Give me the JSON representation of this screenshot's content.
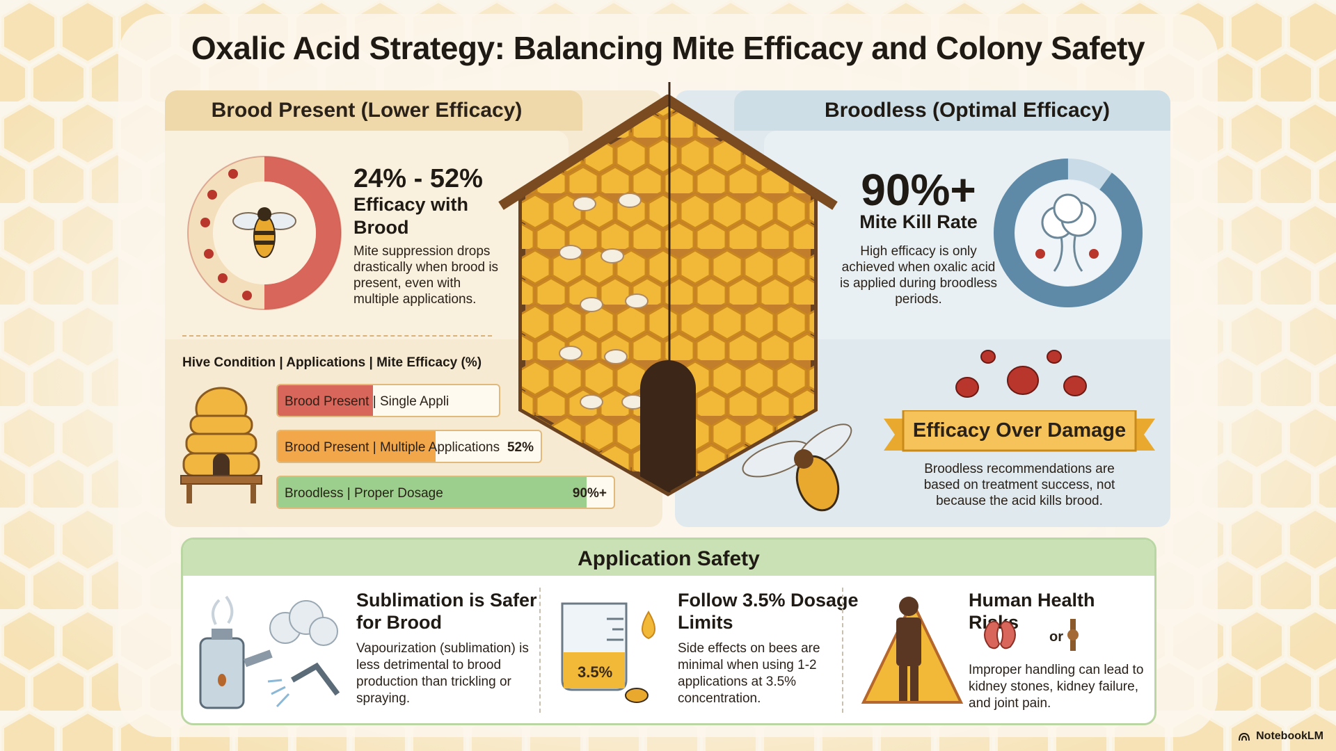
{
  "title": "Oxalic Acid Strategy: Balancing Mite Efficacy and Colony Safety",
  "left": {
    "tab_label": "Brood Present (Lower Efficacy)",
    "big_range": "24% - 52%",
    "big_sub": "Efficacy with Brood",
    "body": "Mite suppression drops drastically when brood is present, even with multiple applications.",
    "donut_fraction": 0.5,
    "table_header": "Hive Condition | Applications | Mite Efficacy (%)",
    "bars": [
      {
        "label": "Brood Present | Single Appli",
        "value": "",
        "fill_fraction": 0.43,
        "color": "#d9665a"
      },
      {
        "label": "Brood Present | Multiple Applications",
        "value": "52%",
        "fill_fraction": 0.6,
        "color": "#f2a84a"
      },
      {
        "label": "Broodless | Proper Dosage",
        "value": "90%+",
        "fill_fraction": 0.92,
        "color": "#9ccf8e"
      }
    ]
  },
  "right": {
    "tab_label": "Broodless (Optimal Efficacy)",
    "big_value": "90%+",
    "big_sub": "Mite Kill Rate",
    "body": "High efficacy is only achieved when oxalic acid is applied during broodless periods.",
    "donut_fraction": 0.9,
    "ribbon_label": "Efficacy Over Damage",
    "ribbon_body": "Broodless recommendations are based on treatment success, not because the acid kills brood."
  },
  "safety": {
    "title": "Application Safety",
    "columns": [
      {
        "title": "Sublimation is Safer for Brood",
        "body": "Vapourization (sublimation) is less detrimental to brood production than trickling or spraying.",
        "icon": "vaporizer-icon"
      },
      {
        "title": "Follow 3.5% Dosage Limits",
        "body": "Side effects on bees are minimal when using 1-2 applications at 3.5% concentration.",
        "icon": "beaker-icon",
        "beaker_label": "3.5%"
      },
      {
        "title": "Human Health Risks",
        "body": "Improper handling can lead to kidney stones, kidney failure, and joint pain.",
        "icon": "warning-person-icon",
        "or_text": "or"
      }
    ]
  },
  "brand": "NotebookLM",
  "colors": {
    "left_panel": "#f6ead2",
    "right_panel": "#dfe9ee",
    "safety_header": "#c9e1b4",
    "brood_red": "#d9665a",
    "broodless_blue": "#5f8aa7",
    "honey": "#e8a92e"
  }
}
